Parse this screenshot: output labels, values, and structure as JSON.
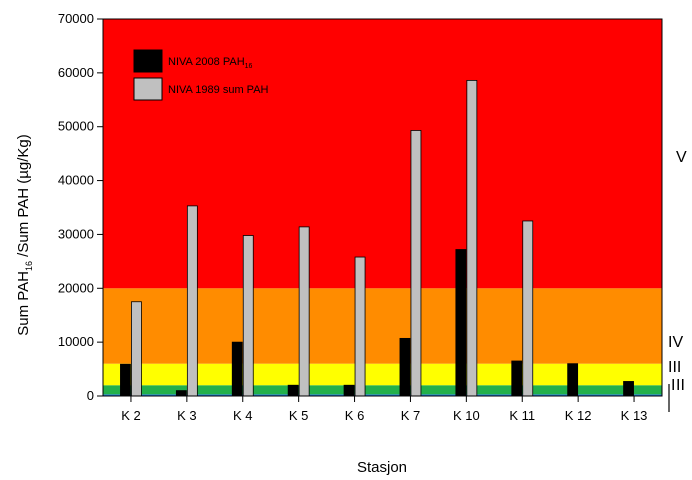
{
  "chart_data": {
    "type": "bar",
    "title": "",
    "xlabel": "Stasjon",
    "ylabel": {
      "prefix": "Sum PAH",
      "sub": "16",
      "suffix": " /Sum PAH (µg/Kg)"
    },
    "categories": [
      "K 2",
      "K 3",
      "K 4",
      "K 5",
      "K 6",
      "K 7",
      "K 10",
      "K 11",
      "K 12",
      "K 13"
    ],
    "series": [
      {
        "name": "NIVA 2008 PAH",
        "name_sub": "16",
        "color": "#000000",
        "values": [
          5900,
          1000,
          10000,
          2000,
          2000,
          10700,
          27200,
          6500,
          6000,
          2700
        ]
      },
      {
        "name": "NIVA 1989 sum PAH",
        "color": "#c0c0c0",
        "values": [
          17500,
          35300,
          29800,
          31400,
          25800,
          49300,
          58600,
          32500,
          null,
          null
        ]
      }
    ],
    "ylim": [
      0,
      70000
    ],
    "yticks": [
      "0",
      "10000",
      "20000",
      "30000",
      "40000",
      "50000",
      "60000",
      "70000"
    ],
    "legend_position": "top-left",
    "grid": false,
    "classes": [
      {
        "label": "I",
        "from": 0,
        "to": 300,
        "color": "#1e7bd8"
      },
      {
        "label": "II",
        "from": 300,
        "to": 2000,
        "color": "#22b04a"
      },
      {
        "label": "III",
        "from": 2000,
        "to": 6000,
        "color": "#ffff00"
      },
      {
        "label": "IV",
        "from": 6000,
        "to": 20000,
        "color": "#ff8c00"
      },
      {
        "label": "V",
        "from": 20000,
        "to": 70000,
        "color": "#ff0000"
      }
    ]
  }
}
